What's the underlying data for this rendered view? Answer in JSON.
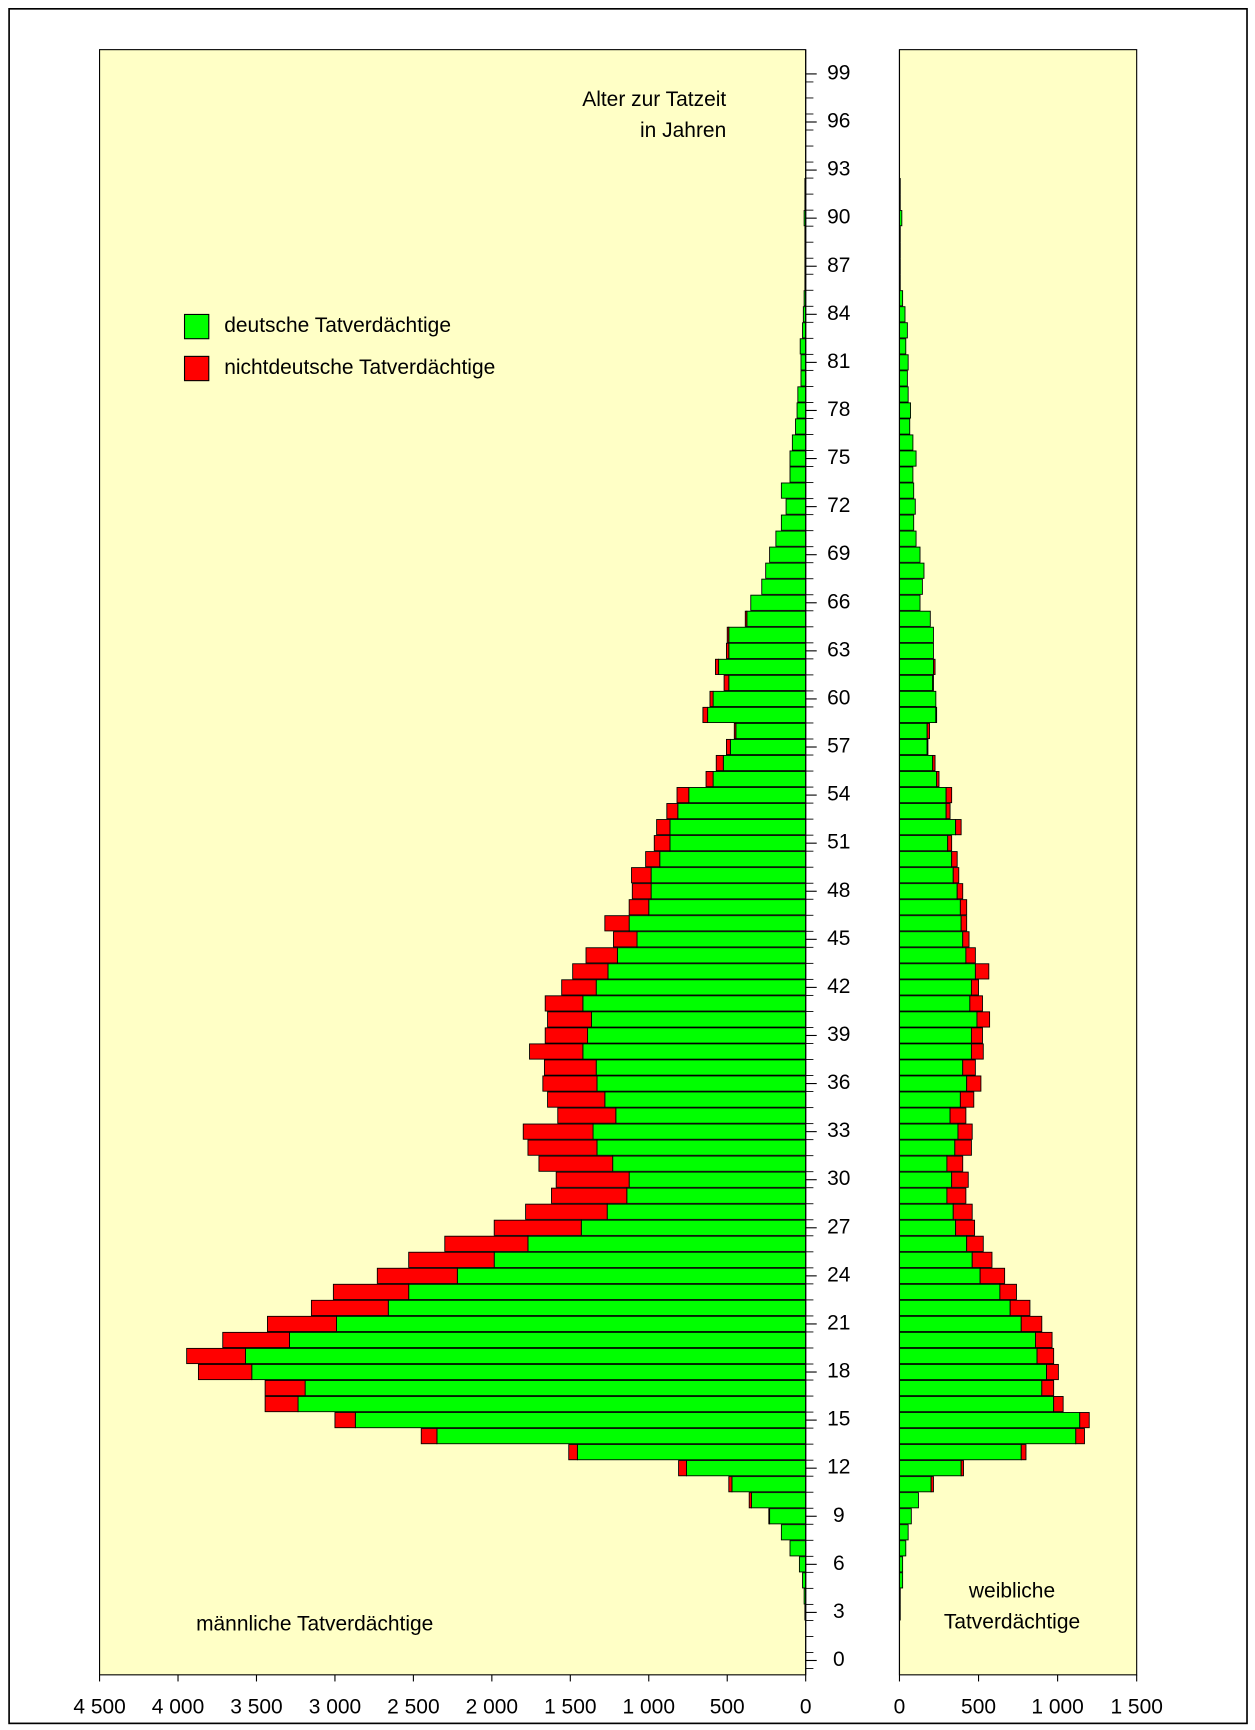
{
  "chart_data": {
    "type": "pyramid",
    "title": [
      "Alter zur Tatzeit",
      "in Jahren"
    ],
    "categories": [
      0,
      null,
      null,
      3,
      null,
      null,
      6,
      null,
      null,
      9,
      null,
      null,
      12,
      null,
      null,
      15,
      null,
      null,
      18,
      null,
      null,
      21,
      null,
      null,
      24,
      null,
      null,
      27,
      null,
      null,
      30,
      null,
      null,
      33,
      null,
      null,
      36,
      null,
      null,
      39,
      null,
      null,
      42,
      null,
      null,
      45,
      null,
      null,
      48,
      null,
      null,
      51,
      null,
      null,
      54,
      null,
      null,
      57,
      null,
      null,
      60,
      null,
      null,
      63,
      null,
      null,
      66,
      null,
      null,
      69,
      null,
      null,
      72,
      null,
      null,
      75,
      null,
      null,
      78,
      null,
      null,
      81,
      null,
      null,
      84,
      null,
      null,
      87,
      null,
      null,
      90,
      null,
      null,
      93,
      null,
      null,
      96,
      null,
      null,
      99
    ],
    "legend": [
      {
        "name": "deutsche Tatverdächtige",
        "color": "#00ff00"
      },
      {
        "name": "nichtdeutsche Tatverdächtige",
        "color": "#ff0000"
      }
    ],
    "panels": [
      {
        "label": [
          "männliche Tatverdächtige"
        ],
        "xlim": [
          4500,
          0
        ],
        "xticks": [
          {
            "value": 4500,
            "label": "4 500"
          },
          {
            "value": 4000,
            "label": "4 000"
          },
          {
            "value": 3500,
            "label": "3 500"
          },
          {
            "value": 3000,
            "label": "3 000"
          },
          {
            "value": 2500,
            "label": "2 500"
          },
          {
            "value": 2000,
            "label": "2 000"
          },
          {
            "value": 1500,
            "label": "1 500"
          },
          {
            "value": 1000,
            "label": "1 000"
          },
          500,
          0
        ],
        "series": [
          {
            "values": [
              0,
              0,
              0,
              5,
              10,
              20,
              40,
              100,
              155,
              230,
              345,
              470,
              760,
              1455,
              2350,
              2870,
              3235,
              3190,
              3530,
              3570,
              3290,
              2990,
              2660,
              2530,
              2220,
              1985,
              1770,
              1430,
              1265,
              1140,
              1125,
              1230,
              1330,
              1355,
              1210,
              1280,
              1330,
              1335,
              1420,
              1390,
              1365,
              1420,
              1335,
              1260,
              1200,
              1075,
              1125,
              1000,
              985,
              985,
              930,
              865,
              865,
              815,
              745,
              590,
              525,
              480,
              445,
              625,
              590,
              490,
              555,
              490,
              490,
              375,
              350,
              280,
              255,
              230,
              190,
              155,
              125,
              155,
              100,
              100,
              85,
              65,
              55,
              50,
              30,
              30,
              35,
              20,
              15,
              10,
              5,
              5,
              5,
              5,
              10,
              5,
              5,
              0,
              0,
              0,
              0,
              0,
              0,
              0
            ]
          },
          {
            "values": [
              0,
              0,
              0,
              0,
              0,
              0,
              0,
              0,
              0,
              5,
              15,
              20,
              50,
              55,
              100,
              130,
              210,
              255,
              340,
              375,
              425,
              440,
              490,
              480,
              510,
              545,
              530,
              555,
              520,
              480,
              465,
              470,
              440,
              445,
              370,
              365,
              345,
              330,
              340,
              270,
              280,
              240,
              220,
              225,
              200,
              150,
              155,
              125,
              120,
              125,
              90,
              100,
              85,
              70,
              75,
              45,
              45,
              25,
              10,
              30,
              20,
              30,
              20,
              15,
              10,
              10,
              0,
              0,
              0,
              0,
              0,
              0,
              0,
              0,
              0,
              0,
              0,
              0,
              0,
              0,
              0,
              0,
              0,
              0,
              0,
              0,
              0,
              0,
              0,
              0,
              0,
              0,
              0,
              0,
              0,
              0,
              0,
              0,
              0,
              0
            ]
          }
        ]
      },
      {
        "label": [
          "weibliche",
          "Tatverdächtige"
        ],
        "xlim": [
          0,
          1500
        ],
        "xticks": [
          0,
          500,
          {
            "value": 1000,
            "label": "1 000"
          },
          {
            "value": 1500,
            "label": "1 500"
          }
        ],
        "series": [
          {
            "values": [
              0,
              0,
              0,
              5,
              5,
              20,
              20,
              40,
              55,
              75,
              120,
              200,
              390,
              770,
              1115,
              1140,
              975,
              900,
              930,
              870,
              860,
              770,
              700,
              635,
              510,
              460,
              425,
              355,
              340,
              300,
              330,
              300,
              350,
              370,
              320,
              385,
              425,
              400,
              455,
              455,
              490,
              445,
              455,
              480,
              420,
              400,
              390,
              385,
              365,
              340,
              330,
              305,
              355,
              295,
              295,
              235,
              210,
              175,
              175,
              230,
              230,
              210,
              215,
              215,
              215,
              195,
              130,
              145,
              155,
              130,
              105,
              90,
              100,
              90,
              85,
              105,
              85,
              65,
              70,
              55,
              50,
              55,
              40,
              50,
              35,
              20,
              5,
              5,
              5,
              5,
              15,
              5,
              5,
              0,
              0,
              0,
              0,
              0,
              0,
              0
            ]
          },
          {
            "values": [
              0,
              0,
              0,
              0,
              0,
              0,
              0,
              0,
              0,
              0,
              0,
              15,
              15,
              30,
              55,
              60,
              60,
              75,
              75,
              105,
              105,
              130,
              125,
              105,
              155,
              125,
              105,
              120,
              120,
              120,
              105,
              100,
              105,
              90,
              100,
              85,
              90,
              80,
              75,
              70,
              80,
              80,
              45,
              85,
              60,
              40,
              35,
              40,
              35,
              35,
              35,
              25,
              35,
              25,
              35,
              15,
              15,
              5,
              15,
              5,
              0,
              5,
              10,
              0,
              0,
              0,
              0,
              0,
              0,
              0,
              0,
              0,
              0,
              0,
              0,
              0,
              0,
              0,
              0,
              0,
              0,
              0,
              0,
              0,
              0,
              0,
              0,
              0,
              0,
              0,
              0,
              0,
              0,
              0,
              0,
              0,
              0,
              0,
              0,
              0
            ]
          }
        ]
      }
    ]
  }
}
